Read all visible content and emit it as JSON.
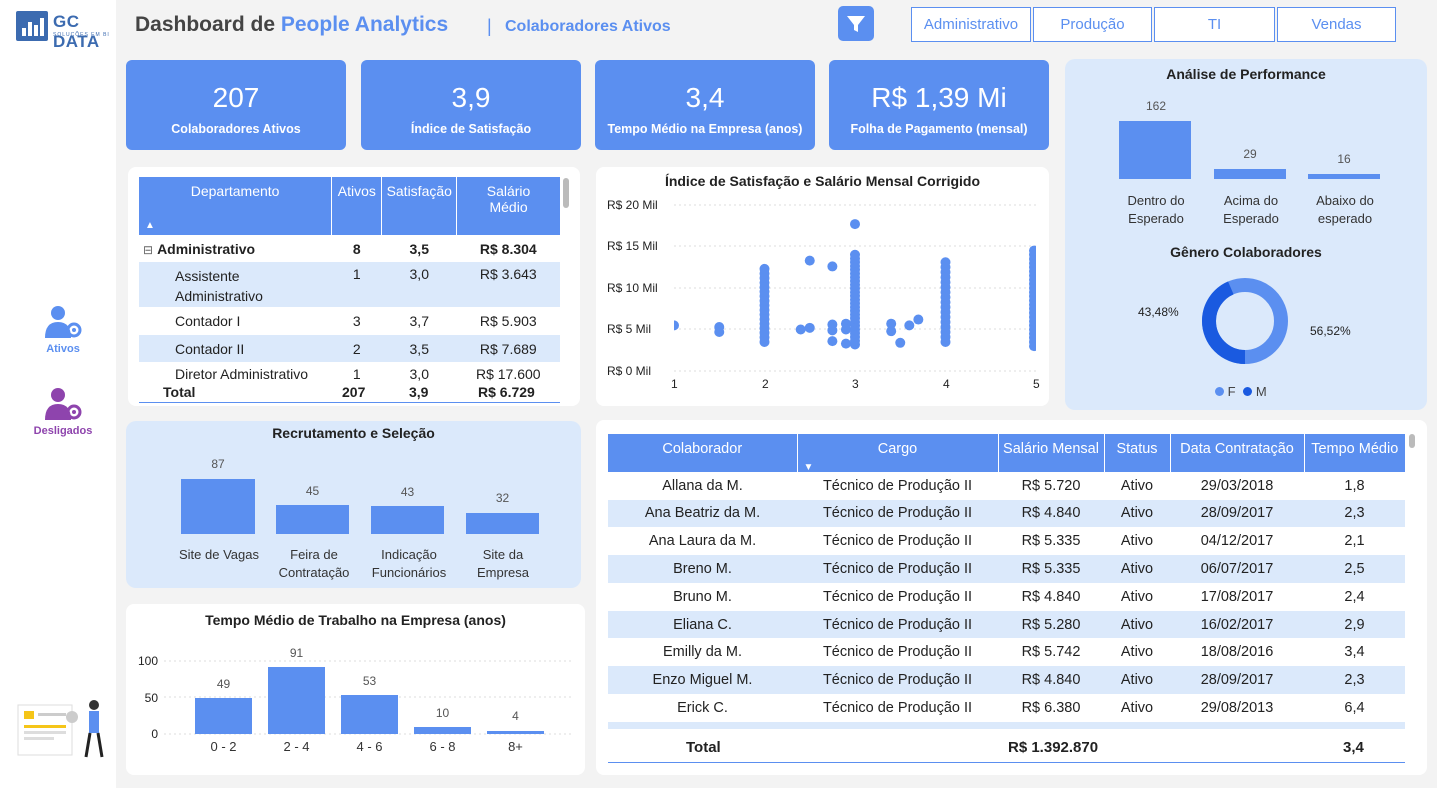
{
  "brand": {
    "name": "GC DATA",
    "tagline": "SOLUÇÕES EM BI"
  },
  "header": {
    "title_part1": "Dashboard de ",
    "title_part2": "People Analytics",
    "separator": "|",
    "subtitle": "Colaboradores  Ativos"
  },
  "slicers": [
    "Administrativo",
    "Produção",
    "TI",
    "Vendas"
  ],
  "sidebar": {
    "items": [
      {
        "label": "Ativos"
      },
      {
        "label": "Desligados"
      }
    ]
  },
  "kpis": [
    {
      "value": "207",
      "label": "Colaboradores Ativos"
    },
    {
      "value": "3,9",
      "label": "Índice de Satisfação"
    },
    {
      "value": "3,4",
      "label": "Tempo Médio na Empresa (anos)"
    },
    {
      "value": "R$ 1,39 Mi",
      "label": "Folha de Pagamento (mensal)"
    }
  ],
  "dept_table": {
    "headers": [
      "Departamento",
      "Ativos",
      "Satisfação",
      "Salário Médio"
    ],
    "group": {
      "name": "Administrativo",
      "ativos": "8",
      "satisfacao": "3,5",
      "salario": "R$ 8.304"
    },
    "rows": [
      {
        "name": "Assistente Administrativo",
        "ativos": "1",
        "satisfacao": "3,0",
        "salario": "R$ 3.643"
      },
      {
        "name": "Contador I",
        "ativos": "3",
        "satisfacao": "3,7",
        "salario": "R$ 5.903"
      },
      {
        "name": "Contador II",
        "ativos": "2",
        "satisfacao": "3,5",
        "salario": "R$ 7.689"
      },
      {
        "name": "Diretor Administrativo",
        "ativos": "1",
        "satisfacao": "3,0",
        "salario": "R$ 17.600"
      }
    ],
    "total": {
      "name": "Total",
      "ativos": "207",
      "satisfacao": "3,9",
      "salario": "R$ 6.729"
    }
  },
  "scatter": {
    "title": "Índice de Satisfação e Salário Mensal Corrigido",
    "y_ticks": [
      "R$ 20 Mil",
      "R$ 15 Mil",
      "R$ 10 Mil",
      "R$ 5 Mil",
      "R$ 0 Mil"
    ],
    "x_ticks": [
      "1",
      "2",
      "3",
      "4",
      "5"
    ]
  },
  "performance": {
    "title": "Análise de Performance",
    "bars": [
      {
        "label_line1": "Dentro do",
        "label_line2": "Esperado",
        "value": "162"
      },
      {
        "label_line1": "Acima do",
        "label_line2": "Esperado",
        "value": "29"
      },
      {
        "label_line1": "Abaixo do",
        "label_line2": "esperado",
        "value": "16"
      }
    ]
  },
  "gender": {
    "title": "Gênero Colaboradores",
    "f_pct": "43,48%",
    "m_pct": "56,52%",
    "legend": [
      "F",
      "M"
    ],
    "colors": {
      "F": "#5b8ff0",
      "M": "#1a5ae0"
    }
  },
  "recruitment": {
    "title": "Recrutamento e Seleção",
    "bars": [
      {
        "line1": "Site de Vagas",
        "line2": "",
        "value": "87"
      },
      {
        "line1": "Feira de",
        "line2": "Contratação",
        "value": "45"
      },
      {
        "line1": "Indicação",
        "line2": "Funcionários",
        "value": "43"
      },
      {
        "line1": "Site da",
        "line2": "Empresa",
        "value": "32"
      }
    ]
  },
  "tenure": {
    "title": "Tempo Médio de Trabalho na Empresa (anos)",
    "y_ticks": [
      "100",
      "50",
      "0"
    ],
    "bars": [
      {
        "cat": "0 - 2",
        "value": "49"
      },
      {
        "cat": "2 - 4",
        "value": "91"
      },
      {
        "cat": "4 - 6",
        "value": "53"
      },
      {
        "cat": "6 - 8",
        "value": "10"
      },
      {
        "cat": "8+",
        "value": "4"
      }
    ]
  },
  "employees": {
    "headers": [
      "Colaborador",
      "Cargo",
      "Salário Mensal",
      "Status",
      "Data Contratação",
      "Tempo Médio"
    ],
    "rows": [
      [
        "Allana da M.",
        "Técnico de Produção II",
        "R$ 5.720",
        "Ativo",
        "29/03/2018",
        "1,8"
      ],
      [
        "Ana Beatriz da M.",
        "Técnico de Produção II",
        "R$ 4.840",
        "Ativo",
        "28/09/2017",
        "2,3"
      ],
      [
        "Ana Laura da M.",
        "Técnico de Produção II",
        "R$ 5.335",
        "Ativo",
        "04/12/2017",
        "2,1"
      ],
      [
        "Breno M.",
        "Técnico de Produção II",
        "R$ 5.335",
        "Ativo",
        "06/07/2017",
        "2,5"
      ],
      [
        "Bruno M.",
        "Técnico de Produção II",
        "R$ 4.840",
        "Ativo",
        "17/08/2017",
        "2,4"
      ],
      [
        "Eliana C.",
        "Técnico de Produção II",
        "R$ 5.280",
        "Ativo",
        "16/02/2017",
        "2,9"
      ],
      [
        "Emilly da M.",
        "Técnico de Produção II",
        "R$ 5.742",
        "Ativo",
        "18/08/2016",
        "3,4"
      ],
      [
        "Enzo Miguel M.",
        "Técnico de Produção II",
        "R$ 4.840",
        "Ativo",
        "28/09/2017",
        "2,3"
      ],
      [
        "Erick C.",
        "Técnico de Produção II",
        "R$ 6.380",
        "Ativo",
        "29/08/2013",
        "6,4"
      ]
    ],
    "total": {
      "label": "Total",
      "salario": "R$ 1.392.870",
      "tempo": "3,4"
    }
  }
}
